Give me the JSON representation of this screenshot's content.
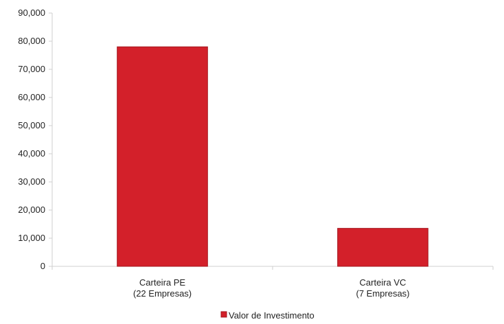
{
  "chart_data": {
    "type": "bar",
    "categories": [
      [
        "Carteira PE",
        "(22 Empresas)"
      ],
      [
        "Carteira VC",
        "(7 Empresas)"
      ]
    ],
    "series": [
      {
        "name": "Valor de Investimento",
        "values": [
          78000,
          13500
        ]
      }
    ],
    "ylim": [
      0,
      90000
    ],
    "yticks": [
      0,
      10000,
      20000,
      30000,
      40000,
      50000,
      60000,
      70000,
      80000,
      90000
    ],
    "ytick_labels": [
      "0",
      "10,000",
      "20,000",
      "30,000",
      "40,000",
      "50,000",
      "60,000",
      "70,000",
      "80,000",
      "90,000"
    ],
    "grid": false,
    "legend_position": "bottom",
    "colors": {
      "bar": "#d3202a",
      "bar_edge": "#a3141c",
      "axis": "#cfcfcf"
    }
  }
}
